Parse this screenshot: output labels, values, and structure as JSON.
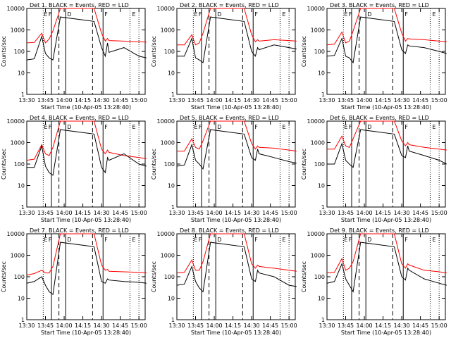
{
  "chart_data": {
    "type": "line",
    "ylabel": "Counts/sec",
    "yscale": "log",
    "ylim": [
      1,
      10000
    ],
    "xlim": [
      "13:30",
      "15:05"
    ],
    "x_ticks": [
      "13:30",
      "13:45",
      "14:00",
      "14:15",
      "14:30",
      "14:45",
      "15:00"
    ],
    "y_ticks": [
      "1",
      "10",
      "100",
      "1000",
      "10000"
    ],
    "xlabel": "Start Time (10-Apr-05 13:28:40)",
    "marker_labels": [
      "E",
      "F",
      "D",
      "F",
      "E"
    ],
    "colors": {
      "events": "#000000",
      "lld": "#ff0000"
    },
    "panels": [
      {
        "title": "Det 1. BLACK = Events, RED = LLD",
        "lld": [
          [
            13.5,
            250
          ],
          [
            13.6,
            260
          ],
          [
            13.7,
            700
          ],
          [
            13.75,
            250
          ],
          [
            13.8,
            380
          ],
          [
            13.85,
            900
          ],
          [
            13.95,
            10000
          ],
          [
            14.4,
            10000
          ],
          [
            14.5,
            700
          ],
          [
            14.55,
            300
          ],
          [
            14.58,
            400
          ],
          [
            14.6,
            320
          ],
          [
            14.8,
            300
          ],
          [
            15.0,
            280
          ],
          [
            15.1,
            270
          ]
        ],
        "events": [
          [
            13.5,
            40
          ],
          [
            13.6,
            45
          ],
          [
            13.7,
            500
          ],
          [
            13.75,
            80
          ],
          [
            13.8,
            50
          ],
          [
            13.85,
            40
          ],
          [
            13.95,
            4000
          ],
          [
            14.4,
            2500
          ],
          [
            14.5,
            150
          ],
          [
            14.55,
            60
          ],
          [
            14.58,
            250
          ],
          [
            14.6,
            90
          ],
          [
            14.8,
            150
          ],
          [
            15.0,
            60
          ],
          [
            15.1,
            50
          ]
        ]
      },
      {
        "title": "Det 2. BLACK = Events, RED = LLD",
        "lld": [
          [
            13.5,
            200
          ],
          [
            13.6,
            200
          ],
          [
            13.7,
            600
          ],
          [
            13.75,
            200
          ],
          [
            13.8,
            250
          ],
          [
            13.85,
            700
          ],
          [
            13.95,
            10000
          ],
          [
            14.4,
            10000
          ],
          [
            14.5,
            600
          ],
          [
            14.55,
            280
          ],
          [
            14.58,
            350
          ],
          [
            14.6,
            300
          ],
          [
            14.8,
            350
          ],
          [
            15.0,
            320
          ],
          [
            15.1,
            300
          ]
        ],
        "events": [
          [
            13.5,
            60
          ],
          [
            13.6,
            60
          ],
          [
            13.7,
            400
          ],
          [
            13.75,
            50
          ],
          [
            13.8,
            40
          ],
          [
            13.85,
            30
          ],
          [
            13.95,
            4000
          ],
          [
            14.4,
            2500
          ],
          [
            14.5,
            100
          ],
          [
            14.55,
            60
          ],
          [
            14.58,
            150
          ],
          [
            14.6,
            120
          ],
          [
            14.8,
            200
          ],
          [
            15.0,
            150
          ],
          [
            15.1,
            130
          ]
        ]
      },
      {
        "title": "Det 3. BLACK = Events, RED = LLD",
        "lld": [
          [
            13.5,
            200
          ],
          [
            13.6,
            220
          ],
          [
            13.7,
            800
          ],
          [
            13.75,
            250
          ],
          [
            13.8,
            300
          ],
          [
            13.85,
            900
          ],
          [
            13.95,
            10000
          ],
          [
            14.4,
            10000
          ],
          [
            14.5,
            700
          ],
          [
            14.55,
            300
          ],
          [
            14.58,
            400
          ],
          [
            14.6,
            380
          ],
          [
            14.8,
            350
          ],
          [
            15.0,
            300
          ],
          [
            15.1,
            280
          ]
        ],
        "events": [
          [
            13.5,
            60
          ],
          [
            13.6,
            65
          ],
          [
            13.7,
            400
          ],
          [
            13.75,
            60
          ],
          [
            13.8,
            50
          ],
          [
            13.85,
            30
          ],
          [
            13.95,
            4000
          ],
          [
            14.4,
            2500
          ],
          [
            14.5,
            120
          ],
          [
            14.55,
            80
          ],
          [
            14.58,
            200
          ],
          [
            14.6,
            180
          ],
          [
            14.8,
            150
          ],
          [
            15.0,
            100
          ],
          [
            15.1,
            80
          ]
        ]
      },
      {
        "title": "Det 4. BLACK = Events, RED = LLD",
        "lld": [
          [
            13.5,
            150
          ],
          [
            13.6,
            170
          ],
          [
            13.7,
            800
          ],
          [
            13.75,
            300
          ],
          [
            13.8,
            250
          ],
          [
            13.85,
            600
          ],
          [
            13.95,
            10000
          ],
          [
            14.4,
            10000
          ],
          [
            14.5,
            500
          ],
          [
            14.55,
            300
          ],
          [
            14.58,
            450
          ],
          [
            14.6,
            350
          ],
          [
            14.8,
            250
          ],
          [
            15.0,
            200
          ],
          [
            15.1,
            180
          ]
        ],
        "events": [
          [
            13.5,
            70
          ],
          [
            13.6,
            70
          ],
          [
            13.7,
            700
          ],
          [
            13.75,
            80
          ],
          [
            13.8,
            40
          ],
          [
            13.85,
            30
          ],
          [
            13.95,
            4000
          ],
          [
            14.4,
            2500
          ],
          [
            14.5,
            70
          ],
          [
            14.55,
            40
          ],
          [
            14.58,
            200
          ],
          [
            14.6,
            150
          ],
          [
            14.8,
            300
          ],
          [
            15.0,
            100
          ],
          [
            15.1,
            80
          ]
        ]
      },
      {
        "title": "Det 5. BLACK = Events, RED = LLD",
        "lld": [
          [
            13.5,
            400
          ],
          [
            13.6,
            400
          ],
          [
            13.7,
            1500
          ],
          [
            13.75,
            600
          ],
          [
            13.8,
            500
          ],
          [
            13.85,
            1200
          ],
          [
            13.95,
            10000
          ],
          [
            14.4,
            10000
          ],
          [
            14.5,
            900
          ],
          [
            14.55,
            500
          ],
          [
            14.58,
            700
          ],
          [
            14.6,
            600
          ],
          [
            14.8,
            550
          ],
          [
            15.0,
            450
          ],
          [
            15.1,
            400
          ]
        ],
        "events": [
          [
            13.5,
            80
          ],
          [
            13.6,
            90
          ],
          [
            13.7,
            800
          ],
          [
            13.75,
            150
          ],
          [
            13.8,
            100
          ],
          [
            13.85,
            60
          ],
          [
            13.95,
            4000
          ],
          [
            14.4,
            2500
          ],
          [
            14.5,
            200
          ],
          [
            14.55,
            150
          ],
          [
            14.58,
            500
          ],
          [
            14.6,
            300
          ],
          [
            14.8,
            200
          ],
          [
            15.0,
            130
          ],
          [
            15.1,
            110
          ]
        ]
      },
      {
        "title": "Det 6. BLACK = Events, RED = LLD",
        "lld": [
          [
            13.5,
            500
          ],
          [
            13.6,
            500
          ],
          [
            13.7,
            2000
          ],
          [
            13.75,
            700
          ],
          [
            13.8,
            600
          ],
          [
            13.85,
            1500
          ],
          [
            13.95,
            10000
          ],
          [
            14.4,
            10000
          ],
          [
            14.5,
            1200
          ],
          [
            14.55,
            700
          ],
          [
            14.58,
            1000
          ],
          [
            14.6,
            800
          ],
          [
            14.8,
            600
          ],
          [
            15.0,
            500
          ],
          [
            15.1,
            450
          ]
        ],
        "events": [
          [
            13.5,
            100
          ],
          [
            13.6,
            100
          ],
          [
            13.7,
            900
          ],
          [
            13.75,
            150
          ],
          [
            13.8,
            100
          ],
          [
            13.85,
            70
          ],
          [
            13.95,
            4000
          ],
          [
            14.4,
            2500
          ],
          [
            14.5,
            250
          ],
          [
            14.55,
            200
          ],
          [
            14.58,
            700
          ],
          [
            14.6,
            400
          ],
          [
            14.8,
            250
          ],
          [
            15.0,
            150
          ],
          [
            15.1,
            100
          ]
        ]
      },
      {
        "title": "Det 7. BLACK = Events, RED = LLD",
        "lld": [
          [
            13.5,
            120
          ],
          [
            13.6,
            140
          ],
          [
            13.7,
            200
          ],
          [
            13.75,
            150
          ],
          [
            13.8,
            150
          ],
          [
            13.85,
            300
          ],
          [
            13.95,
            10000
          ],
          [
            14.4,
            10000
          ],
          [
            14.5,
            350
          ],
          [
            14.55,
            200
          ],
          [
            14.58,
            220
          ],
          [
            14.6,
            180
          ],
          [
            14.8,
            170
          ],
          [
            15.0,
            160
          ],
          [
            15.1,
            150
          ]
        ],
        "events": [
          [
            13.5,
            50
          ],
          [
            13.6,
            60
          ],
          [
            13.7,
            100
          ],
          [
            13.75,
            40
          ],
          [
            13.8,
            20
          ],
          [
            13.85,
            15
          ],
          [
            13.95,
            4000
          ],
          [
            14.4,
            2500
          ],
          [
            14.5,
            60
          ],
          [
            14.55,
            50
          ],
          [
            14.58,
            80
          ],
          [
            14.6,
            70
          ],
          [
            14.8,
            60
          ],
          [
            15.0,
            55
          ],
          [
            15.1,
            50
          ]
        ]
      },
      {
        "title": "Det 8. BLACK = Events, RED = LLD",
        "lld": [
          [
            13.5,
            150
          ],
          [
            13.6,
            160
          ],
          [
            13.7,
            600
          ],
          [
            13.75,
            200
          ],
          [
            13.8,
            200
          ],
          [
            13.85,
            500
          ],
          [
            13.95,
            10000
          ],
          [
            14.4,
            10000
          ],
          [
            14.5,
            400
          ],
          [
            14.55,
            250
          ],
          [
            14.58,
            350
          ],
          [
            14.6,
            300
          ],
          [
            14.8,
            250
          ],
          [
            15.0,
            200
          ],
          [
            15.1,
            180
          ]
        ],
        "events": [
          [
            13.5,
            40
          ],
          [
            13.6,
            45
          ],
          [
            13.7,
            300
          ],
          [
            13.75,
            60
          ],
          [
            13.8,
            30
          ],
          [
            13.85,
            20
          ],
          [
            13.95,
            4000
          ],
          [
            14.4,
            2500
          ],
          [
            14.5,
            80
          ],
          [
            14.55,
            60
          ],
          [
            14.58,
            200
          ],
          [
            14.6,
            150
          ],
          [
            14.8,
            100
          ],
          [
            15.0,
            40
          ],
          [
            15.1,
            35
          ]
        ]
      },
      {
        "title": "Det 9. BLACK = Events, RED = LLD",
        "lld": [
          [
            13.5,
            150
          ],
          [
            13.6,
            160
          ],
          [
            13.7,
            700
          ],
          [
            13.75,
            200
          ],
          [
            13.8,
            250
          ],
          [
            13.85,
            500
          ],
          [
            13.95,
            10000
          ],
          [
            14.4,
            10000
          ],
          [
            14.5,
            400
          ],
          [
            14.55,
            250
          ],
          [
            14.58,
            400
          ],
          [
            14.6,
            350
          ],
          [
            14.8,
            200
          ],
          [
            15.0,
            170
          ],
          [
            15.1,
            150
          ]
        ],
        "events": [
          [
            13.5,
            50
          ],
          [
            13.6,
            60
          ],
          [
            13.7,
            400
          ],
          [
            13.75,
            80
          ],
          [
            13.8,
            40
          ],
          [
            13.85,
            20
          ],
          [
            13.95,
            4000
          ],
          [
            14.4,
            2500
          ],
          [
            14.5,
            100
          ],
          [
            14.55,
            70
          ],
          [
            14.58,
            250
          ],
          [
            14.6,
            200
          ],
          [
            14.8,
            80
          ],
          [
            15.0,
            50
          ],
          [
            15.1,
            40
          ]
        ]
      }
    ]
  }
}
